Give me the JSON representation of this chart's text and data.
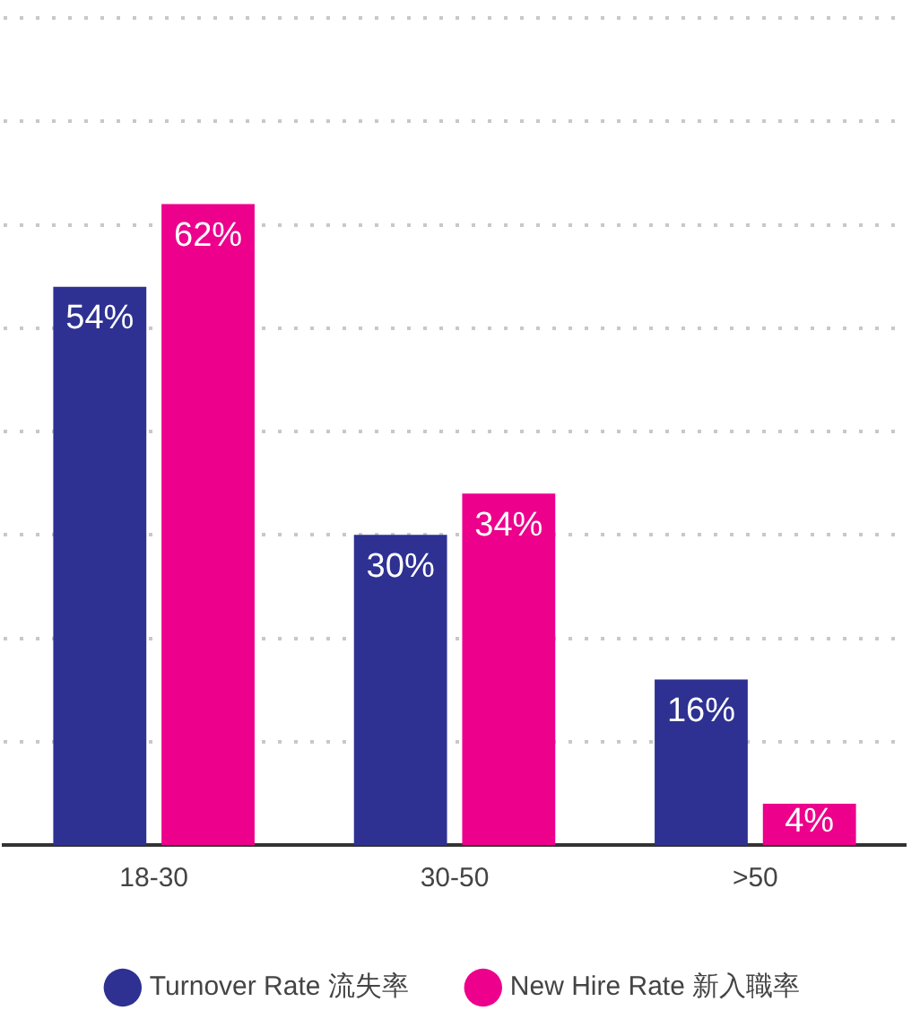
{
  "chart_data": {
    "type": "bar",
    "categories": [
      "18-30",
      "30-50",
      ">50"
    ],
    "series": [
      {
        "name": "Turnover Rate 流失率",
        "color": "#2e3192",
        "values": [
          54,
          30,
          16
        ],
        "value_labels": [
          "54%",
          "30%",
          "16%"
        ]
      },
      {
        "name": "New Hire Rate 新入職率",
        "color": "#ec008c",
        "values": [
          62,
          34,
          4
        ],
        "value_labels": [
          "62%",
          "34%",
          "4%"
        ]
      }
    ],
    "ylim": [
      0,
      80
    ],
    "yticks": [
      {
        "value": 10,
        "label": null
      },
      {
        "value": 20,
        "label": null
      },
      {
        "value": 30,
        "label": null
      },
      {
        "value": 40,
        "label": null
      },
      {
        "value": 50,
        "label": null
      },
      {
        "value": 60,
        "label": null
      },
      {
        "value": 70,
        "label": null
      },
      {
        "value": 80,
        "label": null
      }
    ],
    "grid": "y",
    "legend": "bottom",
    "tick_labels": "x",
    "marker": "circle"
  }
}
